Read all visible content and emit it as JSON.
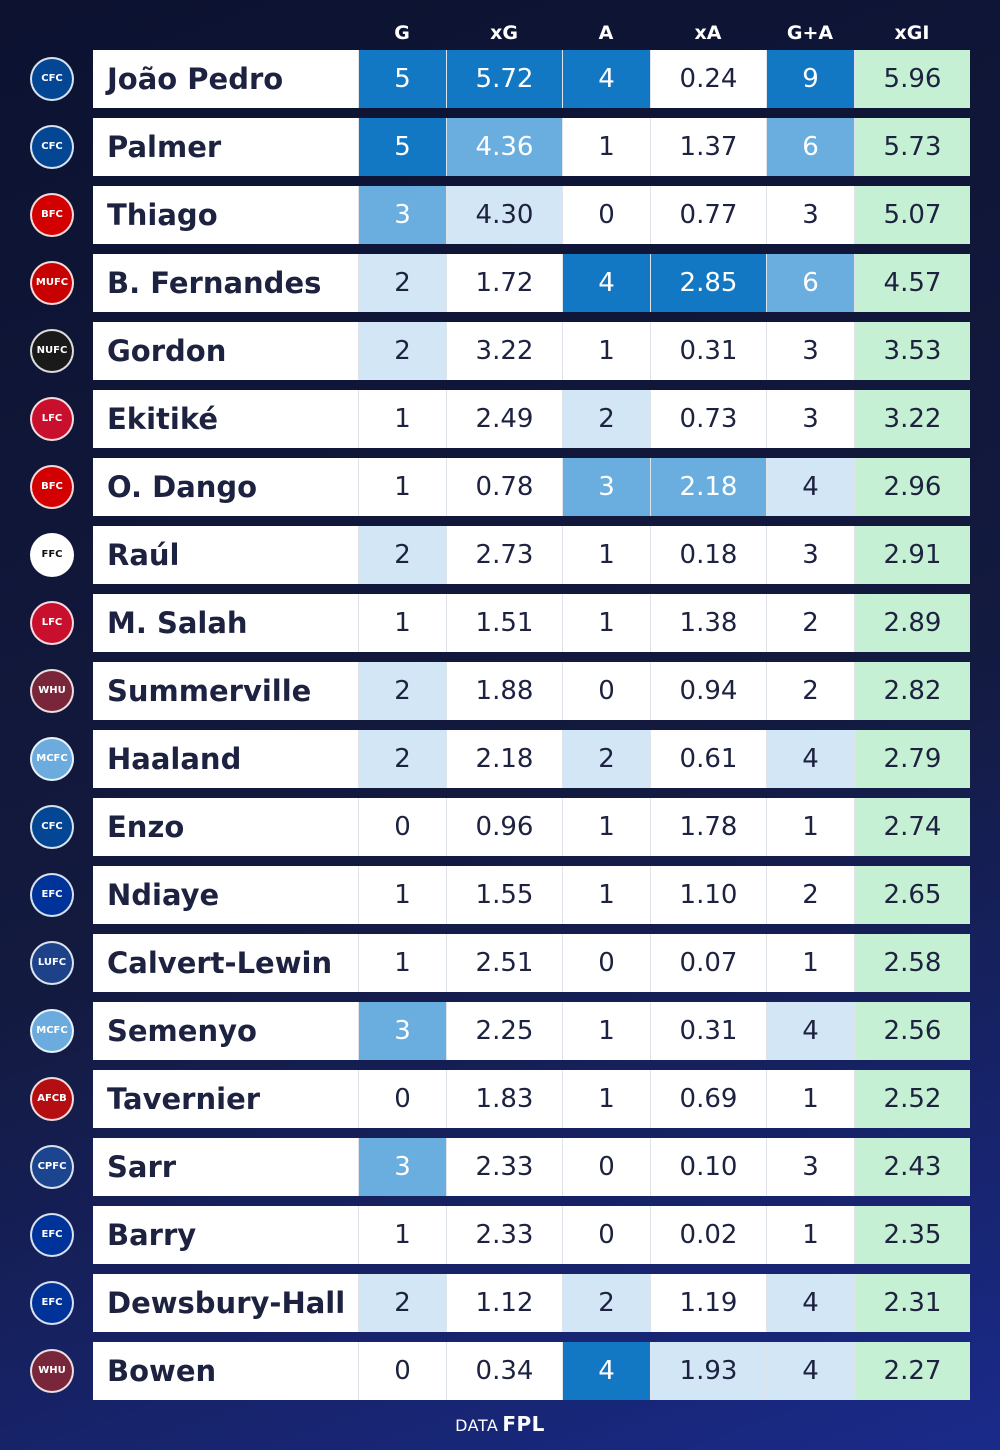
{
  "chart_data": {
    "type": "table",
    "columns": [
      "G",
      "xG",
      "A",
      "xA",
      "G+A",
      "xGI"
    ],
    "rows": [
      {
        "club": "Chelsea",
        "player": "João Pedro",
        "values": [
          "5",
          "5.72",
          "4",
          "0.24",
          "9",
          "5.96"
        ],
        "shade": [
          3,
          3,
          3,
          0,
          3
        ]
      },
      {
        "club": "Chelsea",
        "player": "Palmer",
        "values": [
          "5",
          "4.36",
          "1",
          "1.37",
          "6",
          "5.73"
        ],
        "shade": [
          3,
          2,
          0,
          0,
          2
        ]
      },
      {
        "club": "Brentford",
        "player": "Thiago",
        "values": [
          "3",
          "4.30",
          "0",
          "0.77",
          "3",
          "5.07"
        ],
        "shade": [
          2,
          1,
          0,
          0,
          0
        ]
      },
      {
        "club": "Manchester United",
        "player": "B. Fernandes",
        "values": [
          "2",
          "1.72",
          "4",
          "2.85",
          "6",
          "4.57"
        ],
        "shade": [
          1,
          0,
          3,
          3,
          2
        ]
      },
      {
        "club": "Newcastle",
        "player": "Gordon",
        "values": [
          "2",
          "3.22",
          "1",
          "0.31",
          "3",
          "3.53"
        ],
        "shade": [
          1,
          0,
          0,
          0,
          0
        ]
      },
      {
        "club": "Liverpool",
        "player": "Ekitiké",
        "values": [
          "1",
          "2.49",
          "2",
          "0.73",
          "3",
          "3.22"
        ],
        "shade": [
          0,
          0,
          1,
          0,
          0
        ]
      },
      {
        "club": "Brentford",
        "player": "O. Dango",
        "values": [
          "1",
          "0.78",
          "3",
          "2.18",
          "4",
          "2.96"
        ],
        "shade": [
          0,
          0,
          2,
          2,
          1
        ]
      },
      {
        "club": "Fulham",
        "player": "Raúl",
        "values": [
          "2",
          "2.73",
          "1",
          "0.18",
          "3",
          "2.91"
        ],
        "shade": [
          1,
          0,
          0,
          0,
          0
        ]
      },
      {
        "club": "Liverpool",
        "player": "M. Salah",
        "values": [
          "1",
          "1.51",
          "1",
          "1.38",
          "2",
          "2.89"
        ],
        "shade": [
          0,
          0,
          0,
          0,
          0
        ]
      },
      {
        "club": "West Ham",
        "player": "Summerville",
        "values": [
          "2",
          "1.88",
          "0",
          "0.94",
          "2",
          "2.82"
        ],
        "shade": [
          1,
          0,
          0,
          0,
          0
        ]
      },
      {
        "club": "Manchester City",
        "player": "Haaland",
        "values": [
          "2",
          "2.18",
          "2",
          "0.61",
          "4",
          "2.79"
        ],
        "shade": [
          1,
          0,
          1,
          0,
          1
        ]
      },
      {
        "club": "Chelsea",
        "player": "Enzo",
        "values": [
          "0",
          "0.96",
          "1",
          "1.78",
          "1",
          "2.74"
        ],
        "shade": [
          0,
          0,
          0,
          0,
          0
        ]
      },
      {
        "club": "Everton",
        "player": "Ndiaye",
        "values": [
          "1",
          "1.55",
          "1",
          "1.10",
          "2",
          "2.65"
        ],
        "shade": [
          0,
          0,
          0,
          0,
          0
        ]
      },
      {
        "club": "Leeds",
        "player": "Calvert-Lewin",
        "values": [
          "1",
          "2.51",
          "0",
          "0.07",
          "1",
          "2.58"
        ],
        "shade": [
          0,
          0,
          0,
          0,
          0
        ]
      },
      {
        "club": "Manchester City",
        "player": "Semenyo",
        "values": [
          "3",
          "2.25",
          "1",
          "0.31",
          "4",
          "2.56"
        ],
        "shade": [
          2,
          0,
          0,
          0,
          1
        ]
      },
      {
        "club": "Bournemouth",
        "player": "Tavernier",
        "values": [
          "0",
          "1.83",
          "1",
          "0.69",
          "1",
          "2.52"
        ],
        "shade": [
          0,
          0,
          0,
          0,
          0
        ]
      },
      {
        "club": "Crystal Palace",
        "player": "Sarr",
        "values": [
          "3",
          "2.33",
          "0",
          "0.10",
          "3",
          "2.43"
        ],
        "shade": [
          2,
          0,
          0,
          0,
          0
        ]
      },
      {
        "club": "Everton",
        "player": "Barry",
        "values": [
          "1",
          "2.33",
          "0",
          "0.02",
          "1",
          "2.35"
        ],
        "shade": [
          0,
          0,
          0,
          0,
          0
        ]
      },
      {
        "club": "Everton",
        "player": "Dewsbury-Hall",
        "values": [
          "2",
          "1.12",
          "2",
          "1.19",
          "4",
          "2.31"
        ],
        "shade": [
          1,
          0,
          1,
          0,
          1
        ]
      },
      {
        "club": "West Ham",
        "player": "Bowen",
        "values": [
          "0",
          "0.34",
          "4",
          "1.93",
          "4",
          "2.27"
        ],
        "shade": [
          0,
          0,
          3,
          1,
          1
        ]
      }
    ]
  },
  "colors": {
    "shade_levels": [
      "#ffffff",
      "#d3e6f5",
      "#6aaee0",
      "#1278c4"
    ],
    "xgi_column": "#c6f0d3",
    "badges": {
      "Chelsea": "#034694",
      "Brentford": "#d20000",
      "Manchester United": "#c70101",
      "Newcastle": "#1a1a1a",
      "Liverpool": "#c8102e",
      "Fulham": "#ffffff",
      "West Ham": "#7a263a",
      "Manchester City": "#6cabdd",
      "Everton": "#003399",
      "Leeds": "#1d428a",
      "Bournemouth": "#b50e12",
      "Crystal Palace": "#1b458f"
    }
  },
  "footer": {
    "prefix": "DATA",
    "source": "FPL"
  }
}
